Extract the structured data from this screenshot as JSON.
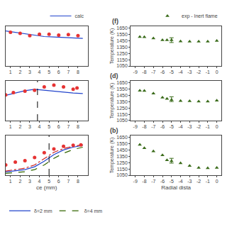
{
  "chart_data": [
    {
      "type": "line",
      "xlim": [
        0.5,
        9.0
      ],
      "xticks": [
        1,
        2,
        3,
        4,
        5,
        6,
        7,
        8
      ],
      "ylim": [
        0.0,
        0.85
      ],
      "tick_labels": "x",
      "grid": false,
      "series": [
        {
          "name": "calc",
          "type": "line",
          "color": "#2244cc",
          "line_style": "solid",
          "x": [
            0.5,
            1.5,
            2.5,
            3.5,
            4.5,
            5.5,
            6.5,
            7.5,
            8.5
          ],
          "values": [
            0.75,
            0.72,
            0.68,
            0.65,
            0.63,
            0.62,
            0.61,
            0.6,
            0.59
          ]
        },
        {
          "type": "scatter",
          "marker": "circle",
          "color": "#e63333",
          "x": [
            1,
            2,
            3,
            4,
            5,
            6,
            7,
            8
          ],
          "values": [
            0.72,
            0.7,
            0.65,
            0.68,
            0.68,
            0.66,
            0.67,
            0.65
          ]
        }
      ]
    },
    {
      "type": "line",
      "xlim": [
        0.5,
        9.0
      ],
      "xticks": [
        1,
        2,
        3,
        4,
        5,
        6,
        7,
        8
      ],
      "ylim": [
        0.0,
        0.85
      ],
      "tick_labels": "x",
      "grid": false,
      "series": [
        {
          "type": "line",
          "color": "#2244cc",
          "line_style": "solid",
          "x": [
            0.5,
            1.5,
            2.5,
            3.5,
            4.5,
            5.5,
            6.5,
            7.5,
            8.5
          ],
          "values": [
            0.54,
            0.59,
            0.64,
            0.67,
            0.65,
            0.62,
            0.6,
            0.59,
            0.58
          ]
        },
        {
          "type": "scatter",
          "marker": "circle",
          "color": "#e63333",
          "x": [
            0.5,
            1.3,
            2.5,
            3.5,
            4.5,
            5.5,
            6.5,
            7.5,
            7.9
          ],
          "values": [
            0.55,
            0.6,
            0.63,
            0.65,
            0.72,
            0.76,
            0.72,
            0.67,
            0.7
          ]
        },
        {
          "type": "vline",
          "color": "black",
          "line_style": "dashed",
          "x": [
            3.8
          ]
        }
      ]
    },
    {
      "type": "line",
      "x_label": "ce (mm)",
      "xlim": [
        0.5,
        9.0
      ],
      "xticks": [
        1,
        2,
        3,
        4,
        5,
        6,
        7,
        8
      ],
      "ylim": [
        0.0,
        0.85
      ],
      "tick_labels": "x",
      "grid": false,
      "series": [
        {
          "name": "δ=2 mm",
          "type": "line",
          "color": "#2244cc",
          "line_style": "solid",
          "x": [
            0.5,
            1.5,
            2.5,
            3.5,
            4.5,
            5.5,
            6.5,
            7.5,
            8.5
          ],
          "values": [
            0.07,
            0.09,
            0.12,
            0.18,
            0.3,
            0.44,
            0.54,
            0.6,
            0.64
          ]
        },
        {
          "type": "line",
          "color": "#cc2222",
          "line_style": "dashdot",
          "x": [
            0.5,
            1.5,
            2.5,
            3.5,
            4.5,
            5.5,
            6.5,
            7.5,
            8.5
          ],
          "values": [
            0.09,
            0.12,
            0.15,
            0.22,
            0.36,
            0.49,
            0.57,
            0.62,
            0.65
          ]
        },
        {
          "name": "δ=4 mm",
          "type": "line",
          "color": "#336600",
          "line_style": "dashed",
          "x": [
            0.5,
            1.5,
            2.5,
            3.5,
            4.5,
            5.5,
            6.5,
            7.5,
            8.5
          ],
          "values": [
            0.04,
            0.055,
            0.075,
            0.12,
            0.22,
            0.36,
            0.47,
            0.55,
            0.6
          ]
        },
        {
          "type": "scatter",
          "marker": "circle",
          "color": "#e63333",
          "x": [
            0.5,
            1.5,
            2.5,
            3.5,
            4.5,
            5.5,
            6.5,
            7.5,
            8.3
          ],
          "values": [
            0.22,
            0.28,
            0.31,
            0.38,
            0.48,
            0.56,
            0.62,
            0.64,
            0.65
          ]
        },
        {
          "type": "vline",
          "color": "black",
          "line_style": "dashed",
          "x": [
            5.0
          ]
        }
      ]
    },
    {
      "type": "scatter",
      "title": "(f)",
      "y_label": "Temperature (K)",
      "xlim": [
        -9.5,
        0.5
      ],
      "xticks": [
        -9,
        -8,
        -7,
        -6,
        -5,
        -4,
        -3,
        -2,
        -1,
        0
      ],
      "ylim": [
        1050,
        1680
      ],
      "yticks": [
        1050,
        1150,
        1250,
        1350,
        1450,
        1550,
        1650
      ],
      "grid": false,
      "series": [
        {
          "name": "exp - Inert flame",
          "type": "scatter",
          "marker": "triangle-up",
          "color": "#3a6b1a",
          "x": [
            -8.5,
            -8.0,
            -7.0,
            -6.0,
            -5.5,
            -5.0,
            -4.0,
            -3.0,
            -2.0,
            -1.0,
            0.0
          ],
          "values": [
            1510,
            1508,
            1488,
            1462,
            1460,
            1462,
            1440,
            1437,
            1437,
            1437,
            1450
          ]
        },
        {
          "type": "errorbar",
          "color": "#3a6b1a",
          "x": [
            -5.0
          ],
          "values": [
            1460
          ],
          "error": [
            38
          ]
        }
      ]
    },
    {
      "type": "scatter",
      "title": "(d)",
      "y_label": "Temperature (K)",
      "xlim": [
        -9.5,
        0.5
      ],
      "xticks": [
        -9,
        -8,
        -7,
        -6,
        -5,
        -4,
        -3,
        -2,
        -1,
        0
      ],
      "ylim": [
        1050,
        1680
      ],
      "yticks": [
        1050,
        1150,
        1250,
        1350,
        1450,
        1550,
        1650
      ],
      "grid": false,
      "series": [
        {
          "type": "scatter",
          "marker": "triangle-up",
          "color": "#3a6b1a",
          "x": [
            -8.5,
            -8.0,
            -7.0,
            -6.0,
            -5.5,
            -5.0,
            -4.0,
            -3.0,
            -2.0,
            -1.0,
            0.0
          ],
          "values": [
            1525,
            1522,
            1480,
            1415,
            1395,
            1378,
            1362,
            1360,
            1355,
            1355,
            1368
          ]
        },
        {
          "type": "errorbar",
          "color": "#3a6b1a",
          "x": [
            -5.0
          ],
          "values": [
            1390
          ],
          "error": [
            38
          ]
        }
      ]
    },
    {
      "type": "scatter",
      "title": "(b)",
      "y_label": "Temperature (K)",
      "x_label": "Radial dista",
      "xlim": [
        -9.5,
        0.5
      ],
      "xticks": [
        -9,
        -8,
        -7,
        -6,
        -5,
        -4,
        -3,
        -2,
        -1,
        0
      ],
      "ylim": [
        1050,
        1680
      ],
      "yticks": [
        1050,
        1150,
        1250,
        1350,
        1450,
        1550,
        1650
      ],
      "grid": false,
      "series": [
        {
          "type": "scatter",
          "marker": "triangle-up",
          "color": "#3a6b1a",
          "x": [
            -8.5,
            -8.0,
            -7.0,
            -6.0,
            -5.5,
            -5.0,
            -4.0,
            -3.0,
            -2.0,
            -1.0,
            0.0
          ],
          "values": [
            1535,
            1480,
            1430,
            1368,
            1290,
            1275,
            1242,
            1198,
            1168,
            1162,
            1168
          ]
        },
        {
          "type": "errorbar",
          "color": "#3a6b1a",
          "x": [
            -5.0
          ],
          "values": [
            1280
          ],
          "error": [
            38
          ]
        }
      ]
    }
  ]
}
